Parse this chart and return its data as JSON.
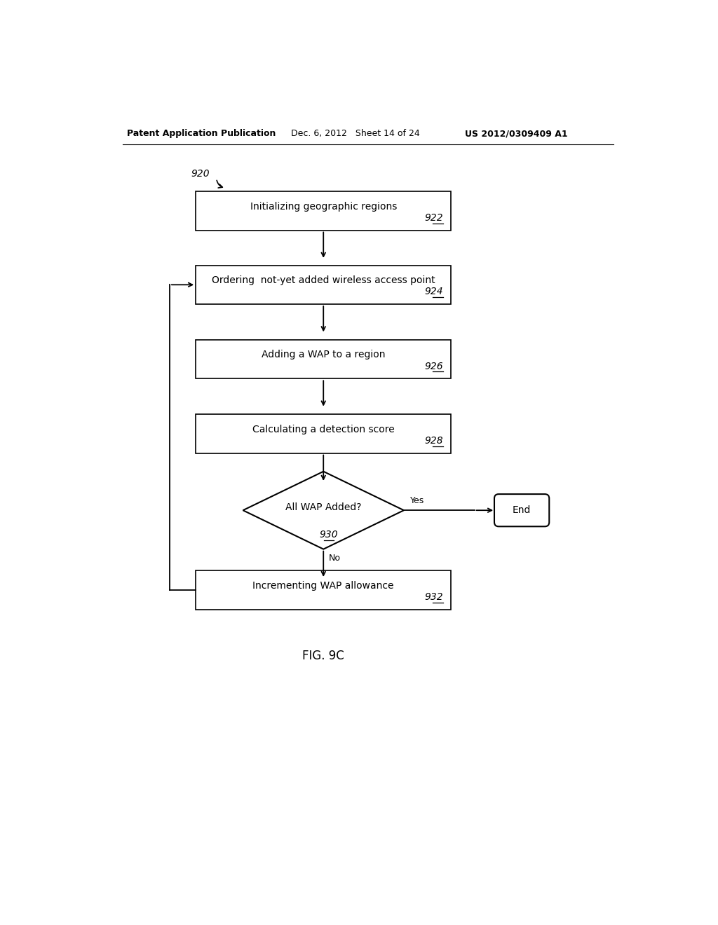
{
  "header_left": "Patent Application Publication",
  "header_mid": "Dec. 6, 2012   Sheet 14 of 24",
  "header_right": "US 2012/0309409 A1",
  "fig_label": "FIG. 9C",
  "entry_label": "920",
  "box_922_text": "Initializing geographic regions",
  "box_922_label": "922",
  "box_924_text": "Ordering  not-yet added wireless access point",
  "box_924_label": "924",
  "box_926_text": "Adding a WAP to a region",
  "box_926_label": "926",
  "box_928_text": "Calculating a detection score",
  "box_928_label": "928",
  "diamond_930_text": "All WAP Added?",
  "diamond_930_label": "930",
  "box_932_text": "Incrementing WAP allowance",
  "box_932_label": "932",
  "end_text": "End",
  "yes_label": "Yes",
  "no_label": "No",
  "bg_color": "#ffffff",
  "box_color": "#ffffff",
  "box_edge": "#000000",
  "text_color": "#000000",
  "arrow_color": "#000000",
  "font_size": 10,
  "label_font_size": 10
}
